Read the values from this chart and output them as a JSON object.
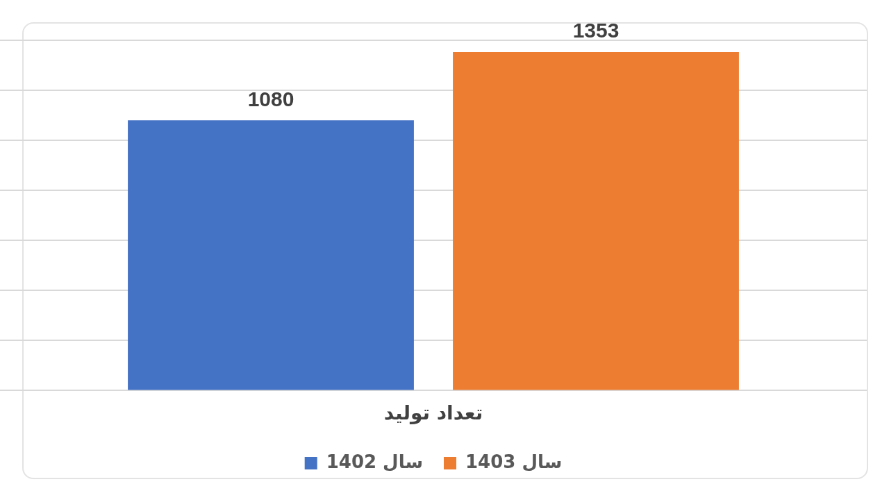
{
  "chart_data": {
    "type": "bar",
    "categories": [
      null
    ],
    "xlabel": "تعداد تولید",
    "series": [
      {
        "name": "سال 1402",
        "color": "#4472c4",
        "values": [
          1080
        ]
      },
      {
        "name": "سال 1403",
        "color": "#ed7d31",
        "values": [
          1353
        ]
      }
    ],
    "tick_labels": false,
    "grid": "y",
    "data_labels": true,
    "legend": "bottom"
  }
}
